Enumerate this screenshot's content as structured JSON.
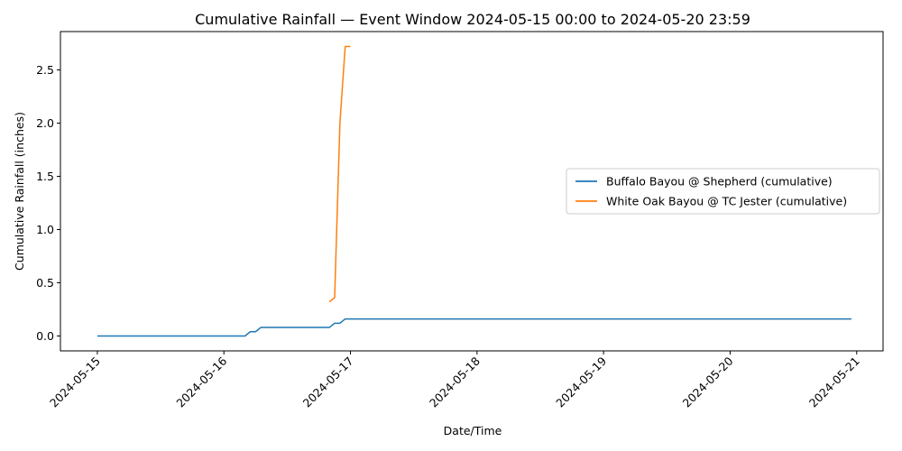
{
  "chart_data": {
    "type": "line",
    "title": "Cumulative Rainfall — Event Window 2024-05-15 00:00 to 2024-05-20 23:59",
    "xlabel": "Date/Time",
    "ylabel": "Cumulative Rainfall (inches)",
    "x_tick_labels": [
      "2024-05-15",
      "2024-05-16",
      "2024-05-17",
      "2024-05-18",
      "2024-05-19",
      "2024-05-20",
      "2024-05-21"
    ],
    "y_tick_labels": [
      "0.0",
      "0.5",
      "1.0",
      "1.5",
      "2.0",
      "2.5"
    ],
    "y_ticks": [
      0,
      0.5,
      1.0,
      1.5,
      2.0,
      2.5
    ],
    "xlim": [
      "2024-05-14 17:00",
      "2024-05-21 05:00"
    ],
    "ylim": [
      -0.14,
      2.86
    ],
    "grid": false,
    "legend_position": "center-right",
    "series": [
      {
        "name": "Buffalo Bayou @ Shepherd (cumulative)",
        "color": "#1f77b4",
        "points": [
          [
            "2024-05-15 00:00",
            0.0
          ],
          [
            "2024-05-16 04:00",
            0.0
          ],
          [
            "2024-05-16 05:00",
            0.04
          ],
          [
            "2024-05-16 06:00",
            0.04
          ],
          [
            "2024-05-16 07:00",
            0.08
          ],
          [
            "2024-05-16 20:00",
            0.08
          ],
          [
            "2024-05-16 21:00",
            0.12
          ],
          [
            "2024-05-16 22:00",
            0.12
          ],
          [
            "2024-05-16 23:00",
            0.16
          ],
          [
            "2024-05-20 23:00",
            0.16
          ]
        ]
      },
      {
        "name": "White Oak Bayou @ TC Jester (cumulative)",
        "color": "#ff7f0e",
        "points": [
          [
            "2024-05-16 20:00",
            0.32
          ],
          [
            "2024-05-16 21:00",
            0.36
          ],
          [
            "2024-05-16 22:00",
            2.0
          ],
          [
            "2024-05-16 23:00",
            2.72
          ],
          [
            "2024-05-17 00:00",
            2.72
          ]
        ]
      }
    ]
  }
}
